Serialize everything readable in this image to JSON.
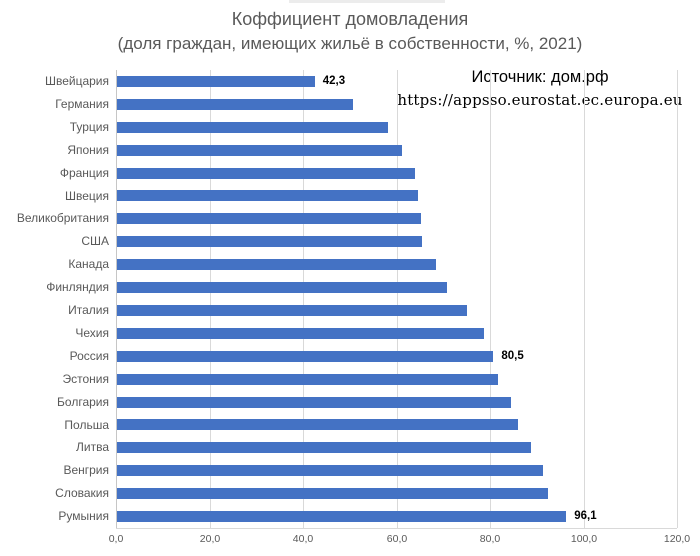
{
  "source_annotation": {
    "line1": "Источник: дом.рф",
    "line2": "https://appsso.eurostat.ec.europa.eu"
  },
  "chart_data": {
    "type": "bar",
    "orientation": "horizontal",
    "title": "Коффициент домовладения",
    "subtitle": "(доля граждан, имеющих жильё в собственности, %, 2021)",
    "xlabel": "",
    "ylabel": "",
    "categories": [
      "Швейцария",
      "Германия",
      "Турция",
      "Япония",
      "Франция",
      "Швеция",
      "Великобритания",
      "США",
      "Канада",
      "Финляндия",
      "Италия",
      "Чехия",
      "Россия",
      "Эстония",
      "Болгария",
      "Польша",
      "Литва",
      "Венгрия",
      "Словакия",
      "Румыния"
    ],
    "values": [
      42.3,
      50.4,
      57.9,
      61.0,
      63.7,
      64.4,
      65.0,
      65.3,
      68.2,
      70.5,
      74.8,
      78.6,
      80.5,
      81.4,
      84.3,
      85.8,
      88.6,
      91.2,
      92.2,
      96.1
    ],
    "value_labels": [
      "42,3",
      "",
      "",
      "",
      "",
      "",
      "",
      "",
      "",
      "",
      "",
      "",
      "80,5",
      "",
      "",
      "",
      "",
      "",
      "",
      "96,1"
    ],
    "xlim": [
      0,
      120
    ],
    "x_tick_labels": [
      "0,0",
      "20,0",
      "40,0",
      "60,0",
      "80,0",
      "100,0",
      "120,0"
    ],
    "grid": true,
    "legend": false,
    "bar_color": "#4472C4",
    "gridline_color": "#d9d9d9",
    "axis_line_color": "#c6c6c6",
    "label_color": "#595959",
    "decimal_separator": ","
  }
}
